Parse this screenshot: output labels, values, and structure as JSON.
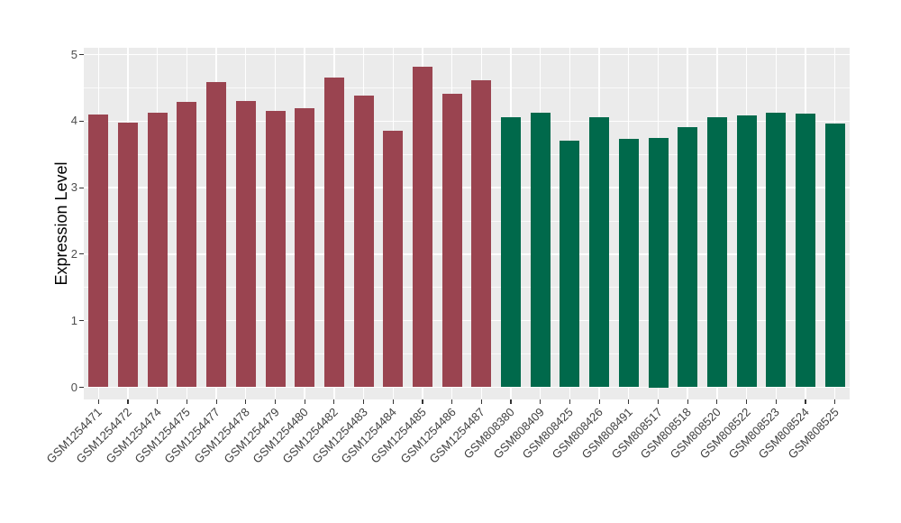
{
  "figure": {
    "y_axis_title": "Expression Level"
  },
  "chart_data": {
    "type": "bar",
    "title": "",
    "xlabel": "",
    "ylabel": "Expression Level",
    "ylim": [
      0,
      5
    ],
    "yticks": [
      "0",
      "1",
      "2",
      "3",
      "4",
      "5"
    ],
    "grid": "on",
    "legend": "none",
    "panel_background": "#EBEBEB",
    "gridline_color": "#FFFFFF",
    "group_colors": {
      "red": "#9A4450",
      "green": "#00694B"
    },
    "categories": [
      "GSM1254471",
      "GSM1254472",
      "GSM1254474",
      "GSM1254475",
      "GSM1254477",
      "GSM1254478",
      "GSM1254479",
      "GSM1254480",
      "GSM1254482",
      "GSM1254483",
      "GSM1254484",
      "GSM1254485",
      "GSM1254486",
      "GSM1254487",
      "GSM808380",
      "GSM808409",
      "GSM808425",
      "GSM808426",
      "GSM808491",
      "GSM808517",
      "GSM808518",
      "GSM808520",
      "GSM808522",
      "GSM808523",
      "GSM808524",
      "GSM808525"
    ],
    "values": [
      4.1,
      3.98,
      4.12,
      4.29,
      4.58,
      4.3,
      4.15,
      4.2,
      4.66,
      4.38,
      3.86,
      4.82,
      4.41,
      4.61,
      4.06,
      4.12,
      3.7,
      4.06,
      3.73,
      3.75,
      3.91,
      4.06,
      4.09,
      4.12,
      4.11,
      3.97
    ],
    "groups": [
      "red",
      "red",
      "red",
      "red",
      "red",
      "red",
      "red",
      "red",
      "red",
      "red",
      "red",
      "red",
      "red",
      "red",
      "green",
      "green",
      "green",
      "green",
      "green",
      "green",
      "green",
      "green",
      "green",
      "green",
      "green",
      "green"
    ]
  }
}
